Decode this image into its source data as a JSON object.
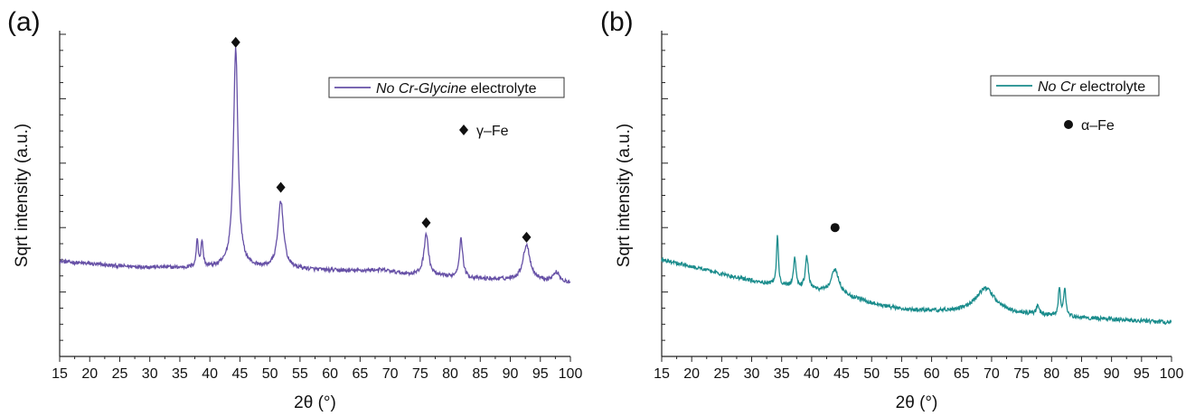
{
  "chart_data": [
    {
      "type": "line",
      "panel_label": "(a)",
      "xlabel": "2θ (°)",
      "ylabel": "Sqrt intensity (a.u.)",
      "xlim": [
        15,
        100
      ],
      "xticks": [
        15,
        20,
        25,
        30,
        35,
        40,
        45,
        50,
        55,
        60,
        65,
        70,
        75,
        80,
        85,
        90,
        95,
        100
      ],
      "grid": false,
      "legend_position": "top-right",
      "series": [
        {
          "name_parts": [
            {
              "text": "No Cr-Glycine",
              "italic": true
            },
            {
              "text": " electrolyte",
              "italic": false
            }
          ],
          "color": "#6650a6",
          "baseline": [
            [
              15,
              0.295
            ],
            [
              25,
              0.28
            ],
            [
              35,
              0.275
            ],
            [
              45,
              0.275
            ],
            [
              55,
              0.27
            ],
            [
              65,
              0.262
            ],
            [
              75,
              0.25
            ],
            [
              85,
              0.24
            ],
            [
              95,
              0.235
            ],
            [
              100,
              0.225
            ]
          ],
          "peaks": [
            {
              "x": 37.9,
              "h": 0.085,
              "w": 0.2
            },
            {
              "x": 38.7,
              "h": 0.08,
              "w": 0.2
            },
            {
              "x": 44.3,
              "h": 0.68,
              "w": 0.45
            },
            {
              "x": 51.8,
              "h": 0.21,
              "w": 0.55
            },
            {
              "x": 68.5,
              "h": 0.01,
              "w": 3.0
            },
            {
              "x": 76.0,
              "h": 0.13,
              "w": 0.45
            },
            {
              "x": 81.8,
              "h": 0.12,
              "w": 0.35
            },
            {
              "x": 92.7,
              "h": 0.11,
              "w": 0.7
            },
            {
              "x": 97.7,
              "h": 0.03,
              "w": 0.7
            }
          ],
          "noise": 0.006
        }
      ],
      "phase_markers": [
        {
          "x": 44.3,
          "y": 0.975
        },
        {
          "x": 51.8,
          "y": 0.525
        },
        {
          "x": 76.0,
          "y": 0.415
        },
        {
          "x": 92.7,
          "y": 0.37
        }
      ],
      "phase_legend": {
        "symbol": "diamond",
        "label": "γ–Fe"
      }
    },
    {
      "type": "line",
      "panel_label": "(b)",
      "xlabel": "2θ (°)",
      "ylabel": "Sqrt intensity (a.u.)",
      "xlim": [
        15,
        100
      ],
      "xticks": [
        15,
        20,
        25,
        30,
        35,
        40,
        45,
        50,
        55,
        60,
        65,
        70,
        75,
        80,
        85,
        90,
        95,
        100
      ],
      "grid": false,
      "legend_position": "top-right",
      "series": [
        {
          "name_parts": [
            {
              "text": "No Cr",
              "italic": true
            },
            {
              "text": " electrolyte",
              "italic": false
            }
          ],
          "color": "#1a8c8c",
          "baseline": [
            [
              15,
              0.3
            ],
            [
              20,
              0.28
            ],
            [
              25,
              0.255
            ],
            [
              30,
              0.235
            ],
            [
              35,
              0.22
            ],
            [
              40,
              0.205
            ],
            [
              45,
              0.19
            ],
            [
              50,
              0.165
            ],
            [
              55,
              0.145
            ],
            [
              60,
              0.14
            ],
            [
              70,
              0.135
            ],
            [
              80,
              0.125
            ],
            [
              90,
              0.115
            ],
            [
              100,
              0.105
            ]
          ],
          "peaks": [
            {
              "x": 34.3,
              "h": 0.16,
              "w": 0.18
            },
            {
              "x": 37.2,
              "h": 0.09,
              "w": 0.25
            },
            {
              "x": 39.2,
              "h": 0.1,
              "w": 0.3
            },
            {
              "x": 43.9,
              "h": 0.075,
              "w": 0.8
            },
            {
              "x": 69.0,
              "h": 0.075,
              "w": 2.0
            },
            {
              "x": 77.7,
              "h": 0.025,
              "w": 0.3
            },
            {
              "x": 81.3,
              "h": 0.09,
              "w": 0.2
            },
            {
              "x": 82.2,
              "h": 0.09,
              "w": 0.22
            }
          ],
          "noise": 0.006
        }
      ],
      "phase_markers": [
        {
          "x": 43.9,
          "y": 0.4
        }
      ],
      "phase_legend": {
        "symbol": "circle",
        "label": "α–Fe"
      }
    }
  ]
}
